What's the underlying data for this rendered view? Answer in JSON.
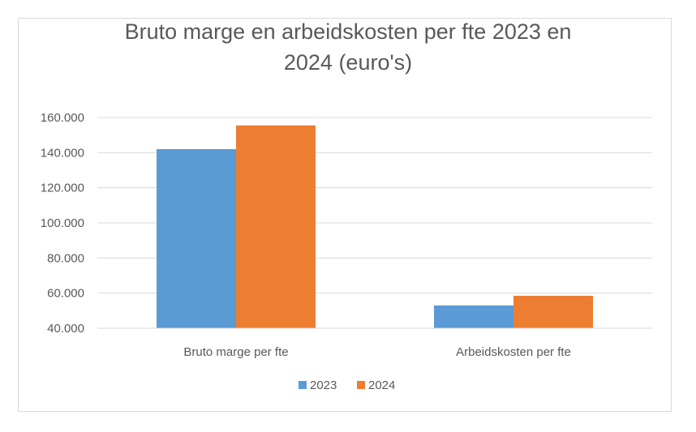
{
  "chart_data": {
    "type": "bar",
    "title_lines": [
      "Bruto marge en arbeidskosten per fte 2023 en",
      "2024 (euro's)"
    ],
    "categories": [
      "Bruto marge per fte",
      "Arbeidskosten per fte"
    ],
    "series": [
      {
        "name": "2023",
        "color": "#5b9bd5",
        "values": [
          142000,
          53000
        ]
      },
      {
        "name": "2024",
        "color": "#ed7d31",
        "values": [
          155500,
          58500
        ]
      }
    ],
    "ylim": [
      40000,
      160000
    ],
    "yticks": [
      40000,
      60000,
      80000,
      100000,
      120000,
      140000,
      160000
    ],
    "ytick_labels": [
      "40.000",
      "60.000",
      "80.000",
      "100.000",
      "120.000",
      "140.000",
      "160.000"
    ],
    "grid": true,
    "legend_position": "bottom"
  }
}
